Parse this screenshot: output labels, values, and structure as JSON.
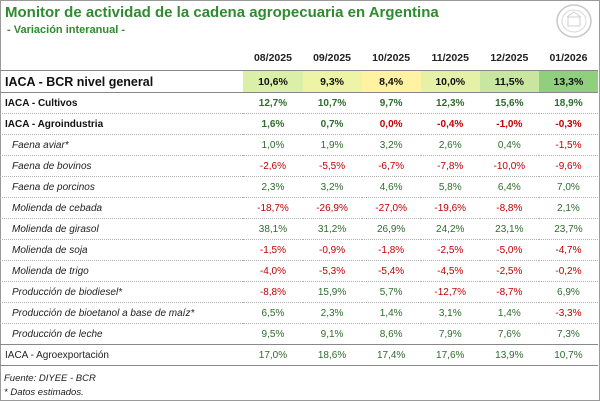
{
  "title": "Monitor de actividad de la cadena agropecuaria en Argentina",
  "subtitle": "- Variación interanual -",
  "chart_data": {
    "type": "table",
    "columns": [
      "08/2025",
      "09/2025",
      "10/2025",
      "11/2025",
      "12/2025",
      "01/2026"
    ],
    "rows": [
      {
        "label": "IACA - BCR nivel general",
        "style": "main",
        "values": [
          "10,6%",
          "9,3%",
          "8,4%",
          "10,0%",
          "11,5%",
          "13,3%"
        ],
        "heat_colors": [
          "#dcefa8",
          "#eef4a6",
          "#fff2a0",
          "#e4f1a6",
          "#c8e6a0",
          "#8fcf7e"
        ]
      },
      {
        "label": "IACA - Cultivos",
        "style": "group",
        "values": [
          "12,7%",
          "10,7%",
          "9,7%",
          "12,3%",
          "15,6%",
          "18,9%"
        ]
      },
      {
        "label": "IACA - Agroindustria",
        "style": "group",
        "values": [
          "1,6%",
          "0,7%",
          "0,0%",
          "-0,4%",
          "-1,0%",
          "-0,3%"
        ]
      },
      {
        "label": "Faena aviar*",
        "style": "sub",
        "values": [
          "1,0%",
          "1,9%",
          "3,2%",
          "2,6%",
          "0,4%",
          "-1,5%"
        ]
      },
      {
        "label": "Faena de bovinos",
        "style": "sub",
        "values": [
          "-2,6%",
          "-5,5%",
          "-6,7%",
          "-7,8%",
          "-10,0%",
          "-9,6%"
        ]
      },
      {
        "label": "Faena de porcinos",
        "style": "sub",
        "values": [
          "2,3%",
          "3,2%",
          "4,6%",
          "5,8%",
          "6,4%",
          "7,0%"
        ]
      },
      {
        "label": "Molienda de cebada",
        "style": "sub",
        "values": [
          "-18,7%",
          "-26,9%",
          "-27,0%",
          "-19,6%",
          "-8,8%",
          "2,1%"
        ]
      },
      {
        "label": "Molienda de girasol",
        "style": "sub",
        "values": [
          "38,1%",
          "31,2%",
          "26,9%",
          "24,2%",
          "23,1%",
          "23,7%"
        ]
      },
      {
        "label": "Molienda de soja",
        "style": "sub",
        "values": [
          "-1,5%",
          "-0,9%",
          "-1,8%",
          "-2,5%",
          "-5,0%",
          "-4,7%"
        ]
      },
      {
        "label": "Molienda de trigo",
        "style": "sub",
        "values": [
          "-4,0%",
          "-5,3%",
          "-5,4%",
          "-4,5%",
          "-2,5%",
          "-0,2%"
        ]
      },
      {
        "label": "Producción de biodiesel*",
        "style": "sub",
        "values": [
          "-8,8%",
          "15,9%",
          "5,7%",
          "-12,7%",
          "-8,7%",
          "6,9%"
        ]
      },
      {
        "label": "Producción de bioetanol a base de maíz*",
        "style": "sub",
        "values": [
          "6,5%",
          "2,3%",
          "1,4%",
          "3,1%",
          "1,4%",
          "-3,3%"
        ]
      },
      {
        "label": "Producción de leche",
        "style": "sub",
        "values": [
          "9,5%",
          "9,1%",
          "8,6%",
          "7,9%",
          "7,6%",
          "7,3%"
        ]
      },
      {
        "label": "IACA - Agroexportación",
        "style": "last",
        "values": [
          "17,0%",
          "18,6%",
          "17,4%",
          "17,6%",
          "13,9%",
          "10,7%"
        ]
      }
    ],
    "colors": {
      "positive": "#2f6b2f",
      "negative": "#c00000",
      "title": "#2e8b2e"
    }
  },
  "footer": {
    "source": "Fuente: DIYEE - BCR",
    "note": "* Datos estimados."
  }
}
